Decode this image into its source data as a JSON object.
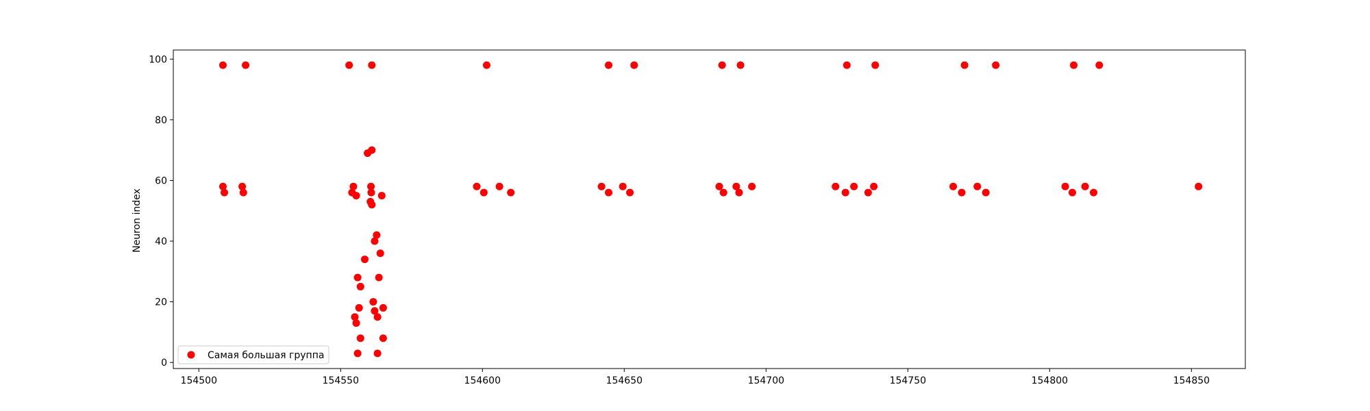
{
  "chart_data": {
    "type": "scatter",
    "title": "",
    "xlabel": "",
    "ylabel": "Neuron index",
    "xlim": [
      154491,
      154869
    ],
    "ylim": [
      -2,
      103
    ],
    "xticks": [
      154500,
      154550,
      154600,
      154650,
      154700,
      154750,
      154800,
      154850
    ],
    "yticks": [
      0,
      20,
      40,
      60,
      80,
      100
    ],
    "grid": false,
    "legend_position": "bottom-left",
    "series": [
      {
        "name": "Самая большая группа",
        "color": "#ff0000",
        "x": [
          154508.5,
          154516.5,
          154553,
          154561,
          154601.5,
          154644.5,
          154653.5,
          154684.5,
          154691,
          154728.5,
          154738.5,
          154770,
          154781,
          154808.5,
          154817.5,
          154508.5,
          154509,
          154515.3,
          154515.7,
          154554,
          154554.5,
          154555.5,
          154560.7,
          154560.8,
          154564.5,
          154598,
          154600.5,
          154606,
          154610,
          154642,
          154644.5,
          154649.5,
          154652,
          154683.5,
          154685,
          154689.5,
          154690.5,
          154695,
          154724.5,
          154728,
          154731,
          154736,
          154738,
          154766,
          154769,
          154774.5,
          154777.5,
          154805.5,
          154808,
          154812.5,
          154815.5,
          154852.5,
          154559.5,
          154561,
          154560.5,
          154561,
          154562.7,
          154562,
          154558.5,
          154564,
          154563.5,
          154556,
          154557,
          154556.5,
          154561.5,
          154562,
          154565,
          154555,
          154563,
          154555.5,
          154557,
          154565,
          154556,
          154563
        ],
        "y": [
          98,
          98,
          98,
          98,
          98,
          98,
          98,
          98,
          98,
          98,
          98,
          98,
          98,
          98,
          98,
          58,
          56,
          58,
          56,
          56,
          58,
          55,
          58,
          56,
          55,
          58,
          56,
          58,
          56,
          58,
          56,
          58,
          56,
          58,
          56,
          58,
          56,
          58,
          58,
          56,
          58,
          56,
          58,
          58,
          56,
          58,
          56,
          58,
          56,
          58,
          56,
          58,
          69,
          70,
          53,
          52,
          42,
          40,
          34,
          36,
          28,
          28,
          25,
          18,
          20,
          17,
          18,
          15,
          15,
          13,
          8,
          8,
          3,
          3
        ]
      }
    ]
  }
}
